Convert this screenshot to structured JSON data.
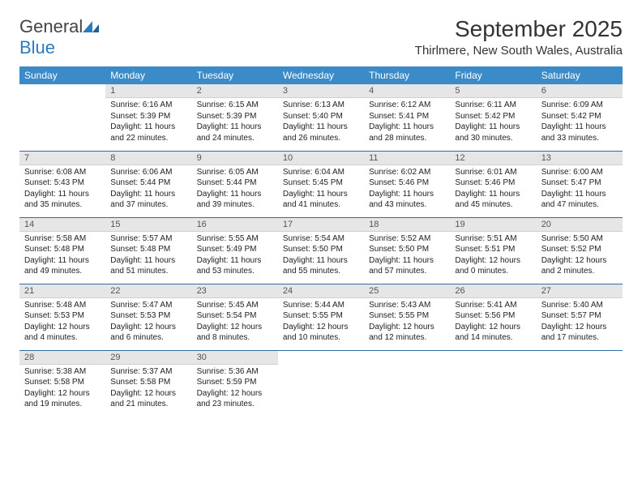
{
  "brand": {
    "name_part1": "General",
    "name_part2": "Blue",
    "color": "#2b7bbf"
  },
  "header": {
    "title": "September 2025",
    "location": "Thirlmere, New South Wales, Australia"
  },
  "colors": {
    "header_bg": "#3b8bc9",
    "header_fg": "#ffffff",
    "daynum_bg": "#e6e6e6",
    "row_sep": "#2f6fa6"
  },
  "weekdays": [
    "Sunday",
    "Monday",
    "Tuesday",
    "Wednesday",
    "Thursday",
    "Friday",
    "Saturday"
  ],
  "weeks": [
    [
      null,
      {
        "n": "1",
        "sr": "Sunrise: 6:16 AM",
        "ss": "Sunset: 5:39 PM",
        "dl": "Daylight: 11 hours and 22 minutes."
      },
      {
        "n": "2",
        "sr": "Sunrise: 6:15 AM",
        "ss": "Sunset: 5:39 PM",
        "dl": "Daylight: 11 hours and 24 minutes."
      },
      {
        "n": "3",
        "sr": "Sunrise: 6:13 AM",
        "ss": "Sunset: 5:40 PM",
        "dl": "Daylight: 11 hours and 26 minutes."
      },
      {
        "n": "4",
        "sr": "Sunrise: 6:12 AM",
        "ss": "Sunset: 5:41 PM",
        "dl": "Daylight: 11 hours and 28 minutes."
      },
      {
        "n": "5",
        "sr": "Sunrise: 6:11 AM",
        "ss": "Sunset: 5:42 PM",
        "dl": "Daylight: 11 hours and 30 minutes."
      },
      {
        "n": "6",
        "sr": "Sunrise: 6:09 AM",
        "ss": "Sunset: 5:42 PM",
        "dl": "Daylight: 11 hours and 33 minutes."
      }
    ],
    [
      {
        "n": "7",
        "sr": "Sunrise: 6:08 AM",
        "ss": "Sunset: 5:43 PM",
        "dl": "Daylight: 11 hours and 35 minutes."
      },
      {
        "n": "8",
        "sr": "Sunrise: 6:06 AM",
        "ss": "Sunset: 5:44 PM",
        "dl": "Daylight: 11 hours and 37 minutes."
      },
      {
        "n": "9",
        "sr": "Sunrise: 6:05 AM",
        "ss": "Sunset: 5:44 PM",
        "dl": "Daylight: 11 hours and 39 minutes."
      },
      {
        "n": "10",
        "sr": "Sunrise: 6:04 AM",
        "ss": "Sunset: 5:45 PM",
        "dl": "Daylight: 11 hours and 41 minutes."
      },
      {
        "n": "11",
        "sr": "Sunrise: 6:02 AM",
        "ss": "Sunset: 5:46 PM",
        "dl": "Daylight: 11 hours and 43 minutes."
      },
      {
        "n": "12",
        "sr": "Sunrise: 6:01 AM",
        "ss": "Sunset: 5:46 PM",
        "dl": "Daylight: 11 hours and 45 minutes."
      },
      {
        "n": "13",
        "sr": "Sunrise: 6:00 AM",
        "ss": "Sunset: 5:47 PM",
        "dl": "Daylight: 11 hours and 47 minutes."
      }
    ],
    [
      {
        "n": "14",
        "sr": "Sunrise: 5:58 AM",
        "ss": "Sunset: 5:48 PM",
        "dl": "Daylight: 11 hours and 49 minutes."
      },
      {
        "n": "15",
        "sr": "Sunrise: 5:57 AM",
        "ss": "Sunset: 5:48 PM",
        "dl": "Daylight: 11 hours and 51 minutes."
      },
      {
        "n": "16",
        "sr": "Sunrise: 5:55 AM",
        "ss": "Sunset: 5:49 PM",
        "dl": "Daylight: 11 hours and 53 minutes."
      },
      {
        "n": "17",
        "sr": "Sunrise: 5:54 AM",
        "ss": "Sunset: 5:50 PM",
        "dl": "Daylight: 11 hours and 55 minutes."
      },
      {
        "n": "18",
        "sr": "Sunrise: 5:52 AM",
        "ss": "Sunset: 5:50 PM",
        "dl": "Daylight: 11 hours and 57 minutes."
      },
      {
        "n": "19",
        "sr": "Sunrise: 5:51 AM",
        "ss": "Sunset: 5:51 PM",
        "dl": "Daylight: 12 hours and 0 minutes."
      },
      {
        "n": "20",
        "sr": "Sunrise: 5:50 AM",
        "ss": "Sunset: 5:52 PM",
        "dl": "Daylight: 12 hours and 2 minutes."
      }
    ],
    [
      {
        "n": "21",
        "sr": "Sunrise: 5:48 AM",
        "ss": "Sunset: 5:53 PM",
        "dl": "Daylight: 12 hours and 4 minutes."
      },
      {
        "n": "22",
        "sr": "Sunrise: 5:47 AM",
        "ss": "Sunset: 5:53 PM",
        "dl": "Daylight: 12 hours and 6 minutes."
      },
      {
        "n": "23",
        "sr": "Sunrise: 5:45 AM",
        "ss": "Sunset: 5:54 PM",
        "dl": "Daylight: 12 hours and 8 minutes."
      },
      {
        "n": "24",
        "sr": "Sunrise: 5:44 AM",
        "ss": "Sunset: 5:55 PM",
        "dl": "Daylight: 12 hours and 10 minutes."
      },
      {
        "n": "25",
        "sr": "Sunrise: 5:43 AM",
        "ss": "Sunset: 5:55 PM",
        "dl": "Daylight: 12 hours and 12 minutes."
      },
      {
        "n": "26",
        "sr": "Sunrise: 5:41 AM",
        "ss": "Sunset: 5:56 PM",
        "dl": "Daylight: 12 hours and 14 minutes."
      },
      {
        "n": "27",
        "sr": "Sunrise: 5:40 AM",
        "ss": "Sunset: 5:57 PM",
        "dl": "Daylight: 12 hours and 17 minutes."
      }
    ],
    [
      {
        "n": "28",
        "sr": "Sunrise: 5:38 AM",
        "ss": "Sunset: 5:58 PM",
        "dl": "Daylight: 12 hours and 19 minutes."
      },
      {
        "n": "29",
        "sr": "Sunrise: 5:37 AM",
        "ss": "Sunset: 5:58 PM",
        "dl": "Daylight: 12 hours and 21 minutes."
      },
      {
        "n": "30",
        "sr": "Sunrise: 5:36 AM",
        "ss": "Sunset: 5:59 PM",
        "dl": "Daylight: 12 hours and 23 minutes."
      },
      null,
      null,
      null,
      null
    ]
  ]
}
